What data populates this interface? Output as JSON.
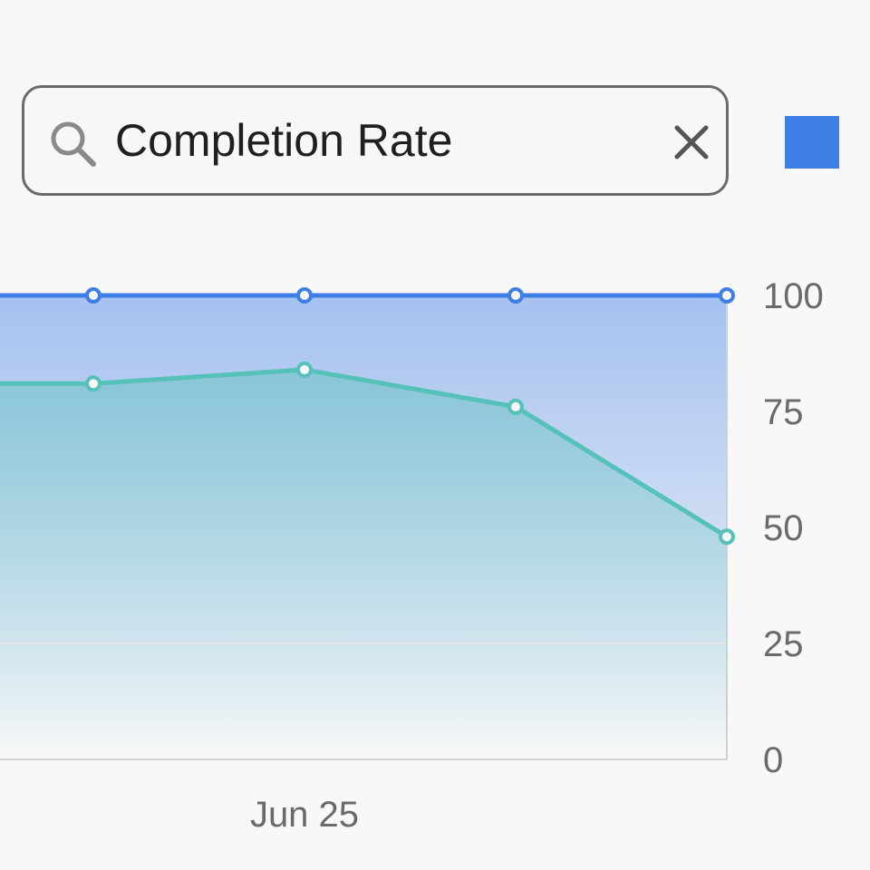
{
  "search": {
    "value": "Completion Rate",
    "icon": "search-icon",
    "clear_icon": "close-icon"
  },
  "legend": {
    "series_color": "#3f7ee5"
  },
  "colors": {
    "series_a": "#3f7ee5",
    "series_b": "#56c1b8",
    "axis": "#cfcfcf",
    "tick": "#6a6a6a"
  },
  "chart_data": {
    "type": "area",
    "x_tick_labels": [
      "Jun 25"
    ],
    "y_ticks": [
      "100",
      "75",
      "50",
      "25",
      "0"
    ],
    "ylim": [
      0,
      100
    ],
    "y_axis_position": "right",
    "grid": false,
    "series": [
      {
        "values": [
          100,
          100,
          100,
          100,
          100
        ]
      },
      {
        "values": [
          81,
          81,
          84,
          76,
          48
        ]
      }
    ]
  }
}
